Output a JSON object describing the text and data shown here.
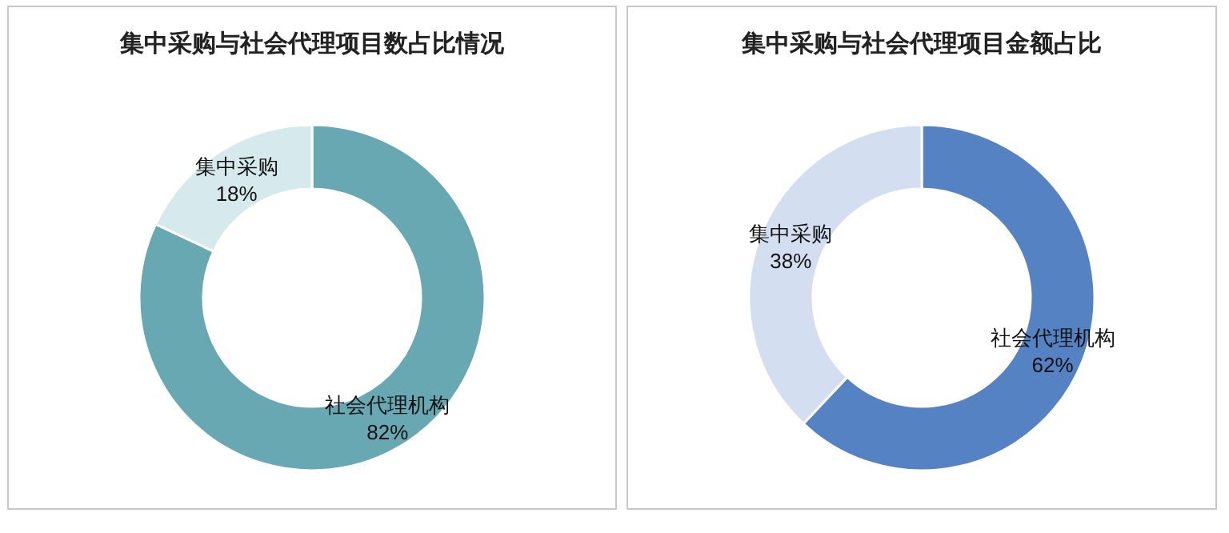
{
  "chart_data": [
    {
      "type": "donut",
      "title": "集中采购与社会代理项目数占比情况",
      "categories": [
        "社会代理机构",
        "集中采购"
      ],
      "values": [
        82,
        18
      ],
      "value_labels": [
        "82%",
        "18%"
      ],
      "colors": [
        "#67a8b3",
        "#d6e9ec"
      ]
    },
    {
      "type": "donut",
      "title": "集中采购与社会代理项目金额占比",
      "categories": [
        "社会代理机构",
        "集中采购"
      ],
      "values": [
        62,
        38
      ],
      "value_labels": [
        "62%",
        "38%"
      ],
      "colors": [
        "#5582c2",
        "#d3dff0"
      ]
    }
  ]
}
